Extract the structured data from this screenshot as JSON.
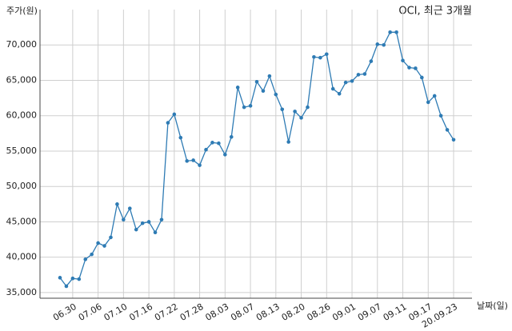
{
  "chart_data": {
    "type": "line",
    "title": "OCI, 최근 3개월",
    "y_label": "주가(원)",
    "x_label": "날짜(일)",
    "categories": [
      null,
      null,
      "06.30",
      null,
      null,
      null,
      "07.06",
      null,
      null,
      null,
      "07.10",
      null,
      null,
      null,
      "07.16",
      null,
      null,
      null,
      "07.22",
      null,
      null,
      null,
      "07.28",
      null,
      null,
      null,
      "08.03",
      null,
      null,
      null,
      "08.07",
      null,
      null,
      null,
      "08.13",
      null,
      null,
      null,
      "08.20",
      null,
      null,
      null,
      "08.26",
      null,
      null,
      null,
      "09.01",
      null,
      null,
      null,
      "09.07",
      null,
      null,
      null,
      "09.11",
      null,
      null,
      null,
      "09.17",
      null,
      null,
      null,
      "20.09.23"
    ],
    "series": [
      {
        "color": "#2e7bb4",
        "values": [
          37100,
          35900,
          37000,
          36900,
          39700,
          40400,
          42000,
          41600,
          42800,
          47500,
          45300,
          46900,
          43900,
          44800,
          45000,
          43500,
          45300,
          59000,
          60200,
          56900,
          53600,
          53700,
          53000,
          55200,
          56200,
          56100,
          54500,
          57000,
          64000,
          61200,
          61400,
          64800,
          63500,
          65600,
          63000,
          60900,
          56300,
          60600,
          59700,
          61200,
          68300,
          68200,
          68700,
          63800,
          63100,
          64700,
          64900,
          65800,
          65900,
          67700,
          70100,
          70000,
          71800,
          71800,
          67800,
          66800,
          66700,
          65400,
          61900,
          62800,
          60000,
          58000,
          56600
        ]
      }
    ],
    "ylim": [
      34200,
      75000
    ],
    "yticks": [
      {
        "value": 35000,
        "label": "35,000"
      },
      {
        "value": 40000,
        "label": "40,000"
      },
      {
        "value": 45000,
        "label": "45,000"
      },
      {
        "value": 50000,
        "label": "50,000"
      },
      {
        "value": 55000,
        "label": "55,000"
      },
      {
        "value": 60000,
        "label": "60,000"
      },
      {
        "value": 65000,
        "label": "65,000"
      },
      {
        "value": 70000,
        "label": "70,000"
      }
    ],
    "grid": true
  }
}
